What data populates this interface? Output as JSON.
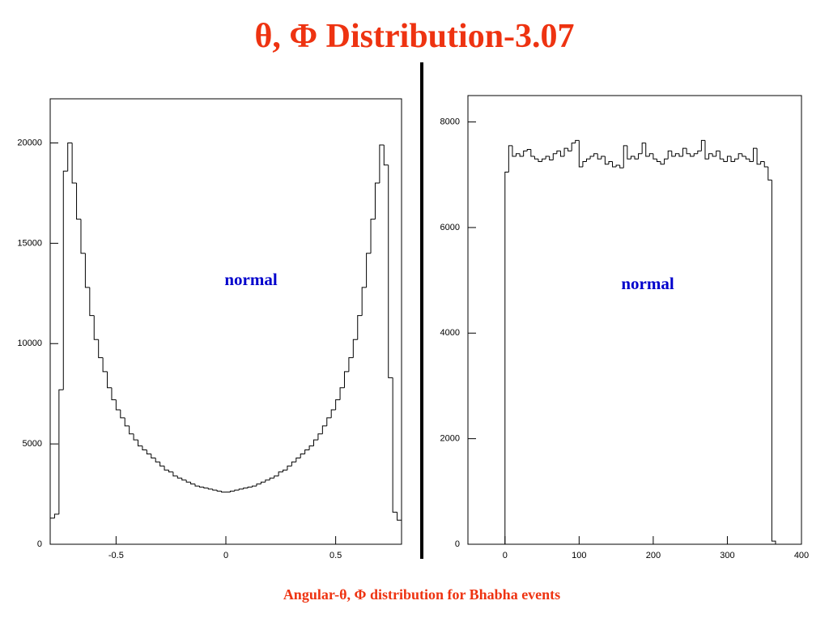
{
  "title": "θ, Φ Distribution-3.07",
  "caption": "Angular-θ, Φ distribution for Bhabha events",
  "chart_data": [
    {
      "type": "histogram",
      "annotation": "normal",
      "color": "#000000",
      "annotation_color": "#0000cc",
      "bins": [
        -0.8,
        -0.78,
        -0.76,
        -0.74,
        -0.72,
        -0.7,
        -0.68,
        -0.66,
        -0.64,
        -0.62,
        -0.6,
        -0.58,
        -0.56,
        -0.54,
        -0.52,
        -0.5,
        -0.48,
        -0.46,
        -0.44,
        -0.42,
        -0.4,
        -0.38,
        -0.36,
        -0.34,
        -0.32,
        -0.3,
        -0.28,
        -0.26,
        -0.24,
        -0.22,
        -0.2,
        -0.18,
        -0.16,
        -0.14,
        -0.12,
        -0.1,
        -0.08,
        -0.06,
        -0.04,
        -0.02,
        0,
        0.02,
        0.04,
        0.06,
        0.08,
        0.1,
        0.12,
        0.14,
        0.16,
        0.18,
        0.2,
        0.22,
        0.24,
        0.26,
        0.28,
        0.3,
        0.32,
        0.34,
        0.36,
        0.38,
        0.4,
        0.42,
        0.44,
        0.46,
        0.48,
        0.5,
        0.52,
        0.54,
        0.56,
        0.58,
        0.6,
        0.62,
        0.64,
        0.66,
        0.68,
        0.7,
        0.72,
        0.74,
        0.76,
        0.78,
        0.8
      ],
      "values": [
        1300,
        1500,
        7700,
        18600,
        20000,
        18000,
        16200,
        14500,
        12800,
        11400,
        10200,
        9300,
        8600,
        7800,
        7200,
        6700,
        6300,
        5900,
        5500,
        5200,
        4900,
        4700,
        4500,
        4300,
        4100,
        3900,
        3700,
        3600,
        3400,
        3300,
        3200,
        3100,
        3000,
        2900,
        2850,
        2800,
        2750,
        2700,
        2650,
        2600,
        2600,
        2650,
        2700,
        2750,
        2800,
        2850,
        2900,
        3000,
        3100,
        3200,
        3300,
        3400,
        3600,
        3700,
        3900,
        4100,
        4300,
        4500,
        4700,
        4900,
        5200,
        5500,
        5900,
        6300,
        6700,
        7200,
        7800,
        8600,
        9300,
        10200,
        11400,
        12800,
        14500,
        16200,
        18000,
        19900,
        18900,
        8300,
        1600,
        1200
      ],
      "xlim": [
        -0.8,
        0.8
      ],
      "xticks": [
        -0.5,
        0,
        0.5
      ],
      "ylim": [
        0,
        22200
      ],
      "yticks": [
        0,
        5000,
        10000,
        15000,
        20000
      ]
    },
    {
      "type": "histogram",
      "annotation": "normal",
      "color": "#000000",
      "annotation_color": "#0000cc",
      "bins": [
        0,
        5,
        10,
        15,
        20,
        25,
        30,
        35,
        40,
        45,
        50,
        55,
        60,
        65,
        70,
        75,
        80,
        85,
        90,
        95,
        100,
        105,
        110,
        115,
        120,
        125,
        130,
        135,
        140,
        145,
        150,
        155,
        160,
        165,
        170,
        175,
        180,
        185,
        190,
        195,
        200,
        205,
        210,
        215,
        220,
        225,
        230,
        235,
        240,
        245,
        250,
        255,
        260,
        265,
        270,
        275,
        280,
        285,
        290,
        295,
        300,
        305,
        310,
        315,
        320,
        325,
        330,
        335,
        340,
        345,
        350,
        355,
        360,
        365
      ],
      "values": [
        7050,
        7550,
        7350,
        7400,
        7350,
        7450,
        7480,
        7350,
        7300,
        7250,
        7300,
        7350,
        7280,
        7400,
        7450,
        7350,
        7500,
        7450,
        7600,
        7650,
        7150,
        7250,
        7300,
        7350,
        7400,
        7300,
        7350,
        7200,
        7250,
        7150,
        7180,
        7130,
        7550,
        7300,
        7350,
        7300,
        7400,
        7600,
        7350,
        7400,
        7300,
        7250,
        7200,
        7300,
        7450,
        7350,
        7400,
        7350,
        7500,
        7400,
        7350,
        7400,
        7450,
        7650,
        7300,
        7400,
        7350,
        7450,
        7300,
        7250,
        7350,
        7250,
        7300,
        7400,
        7350,
        7300,
        7250,
        7500,
        7200,
        7250,
        7150,
        6900,
        60
      ],
      "xlim": [
        -50,
        400
      ],
      "xticks": [
        0,
        100,
        200,
        300,
        400
      ],
      "ylim": [
        0,
        8500
      ],
      "yticks": [
        0,
        2000,
        4000,
        6000,
        8000
      ]
    }
  ]
}
